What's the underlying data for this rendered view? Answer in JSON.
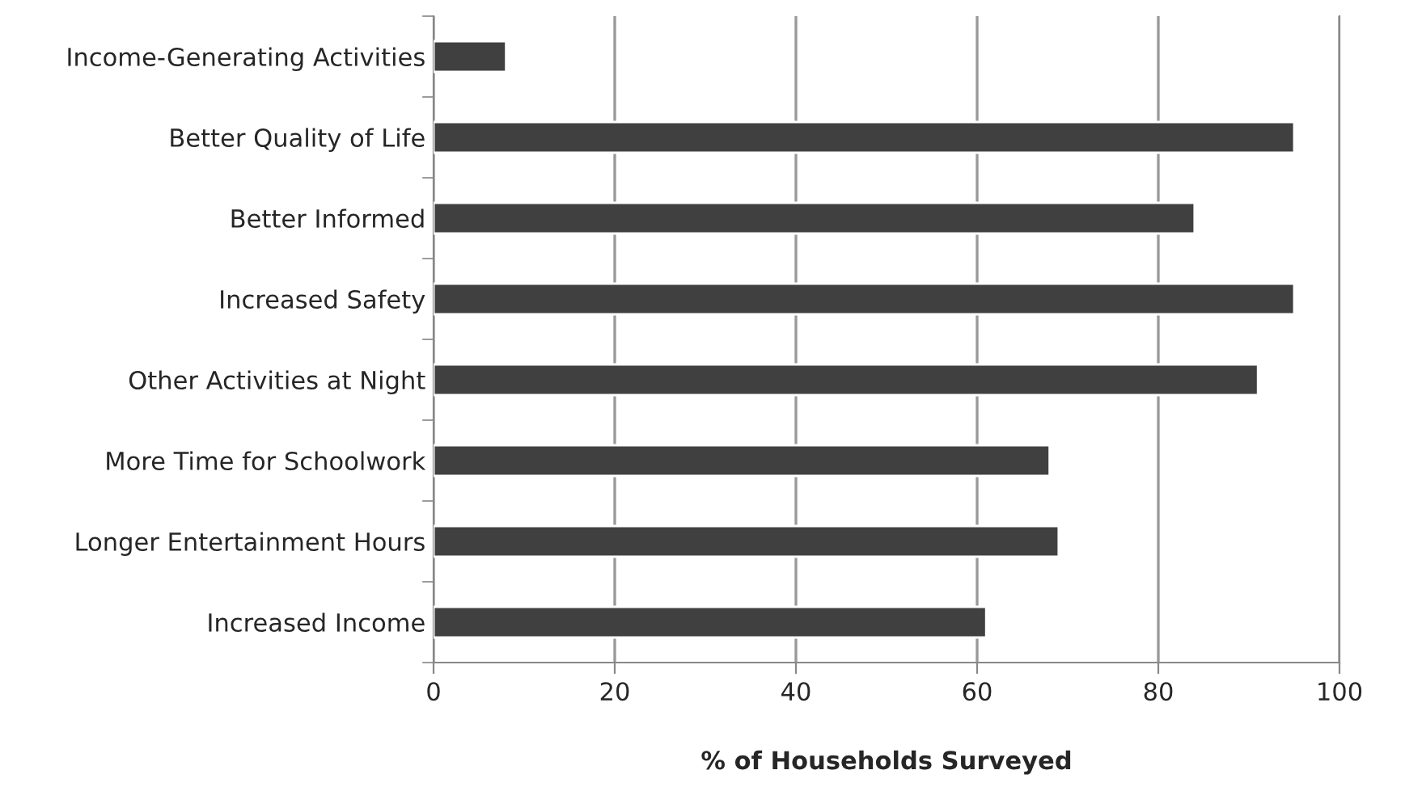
{
  "chart_data": {
    "type": "bar",
    "orientation": "horizontal",
    "xlabel": "% of Households Surveyed",
    "categories": [
      "Income-Generating Activities",
      "Better Quality of Life",
      "Better Informed",
      "Increased Safety",
      "Other Activities at Night",
      "More Time for Schoolwork",
      "Longer Entertainment Hours",
      "Increased Income"
    ],
    "values": [
      8,
      95,
      84,
      95,
      91,
      68,
      69,
      61
    ],
    "color": "#404040",
    "xlim": [
      0,
      100
    ],
    "xticks": [
      0,
      20,
      40,
      60,
      80,
      100
    ],
    "grid": "x",
    "legend": false
  }
}
